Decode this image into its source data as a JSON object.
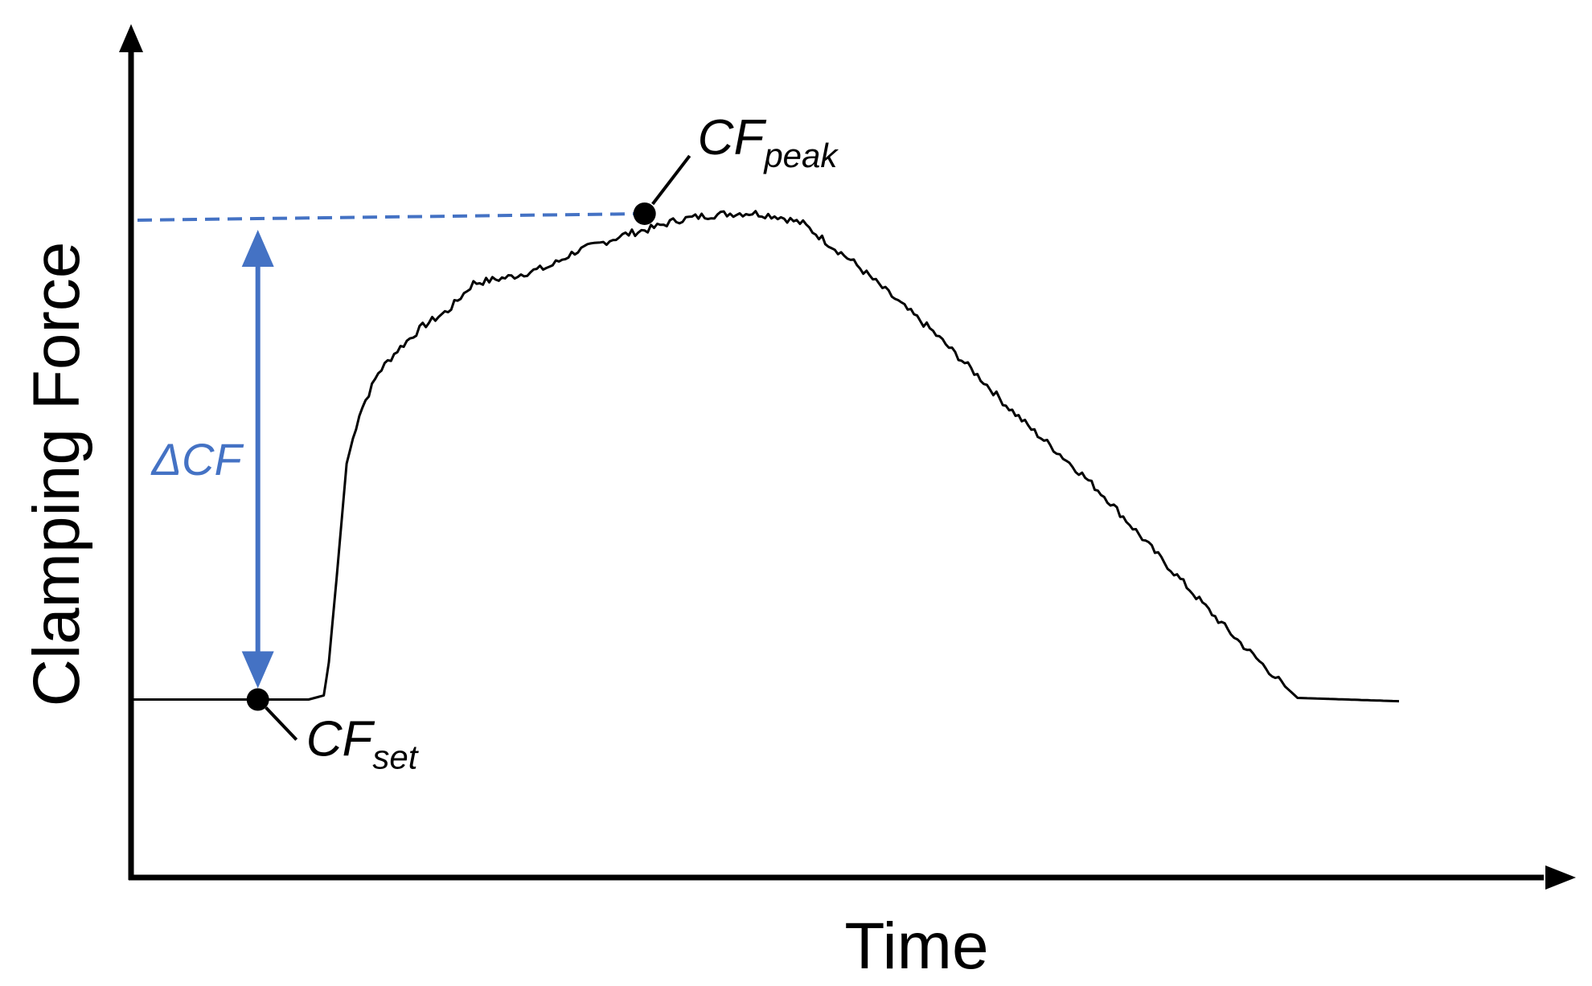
{
  "chart_data": {
    "type": "line",
    "title": "",
    "xlabel": "Time",
    "ylabel": "Clamping Force",
    "xlim": [
      0,
      100
    ],
    "ylim": [
      0,
      100
    ],
    "grid": false,
    "axis_ticks": false,
    "colors": {
      "curve": "#000000",
      "annotation": "#4472C4",
      "axis": "#000000"
    },
    "series": [
      {
        "points": [
          [
            0,
            21.5
          ],
          [
            14,
            21.5
          ],
          [
            15.2,
            22
          ],
          [
            15.6,
            26
          ],
          [
            16.2,
            36
          ],
          [
            17,
            50
          ],
          [
            18,
            56
          ],
          [
            19.5,
            61
          ],
          [
            21,
            63.7
          ],
          [
            23,
            66.6
          ],
          [
            25,
            68.5
          ],
          [
            27,
            71.8
          ],
          [
            30,
            72.6
          ],
          [
            33,
            73.8
          ],
          [
            35,
            75.6
          ],
          [
            37,
            76.6
          ],
          [
            39,
            77.7
          ],
          [
            41,
            78.4
          ],
          [
            43,
            79.4
          ],
          [
            45,
            79.9
          ],
          [
            47,
            80.2
          ],
          [
            49,
            80.3
          ],
          [
            51,
            79.9
          ],
          [
            53,
            79
          ],
          [
            55,
            76.6
          ],
          [
            57,
            74.3
          ],
          [
            59,
            71.6
          ],
          [
            61,
            68.9
          ],
          [
            63,
            66.3
          ],
          [
            65,
            63.3
          ],
          [
            67,
            60.3
          ],
          [
            69,
            57.1
          ],
          [
            71,
            54.2
          ],
          [
            73,
            51.5
          ],
          [
            75,
            48.7
          ],
          [
            77,
            45.7
          ],
          [
            79,
            42.3
          ],
          [
            81,
            38.9
          ],
          [
            83,
            35.6
          ],
          [
            85,
            32.3
          ],
          [
            87,
            29.1
          ],
          [
            89,
            26.1
          ],
          [
            91,
            23.1
          ],
          [
            92,
            21.7
          ],
          [
            96,
            21.5
          ],
          [
            100,
            21.3
          ]
        ]
      }
    ],
    "annotations": [
      {
        "id": "cf-set",
        "main": "CF",
        "sub": "set",
        "point": [
          10,
          21.5
        ]
      },
      {
        "id": "cf-peak",
        "main": "CF",
        "sub": "peak",
        "point": [
          40.5,
          80.2
        ]
      },
      {
        "id": "delta-cf",
        "label": "ΔCF",
        "from": [
          10,
          21.5
        ],
        "to": [
          10,
          80.2
        ]
      }
    ]
  }
}
